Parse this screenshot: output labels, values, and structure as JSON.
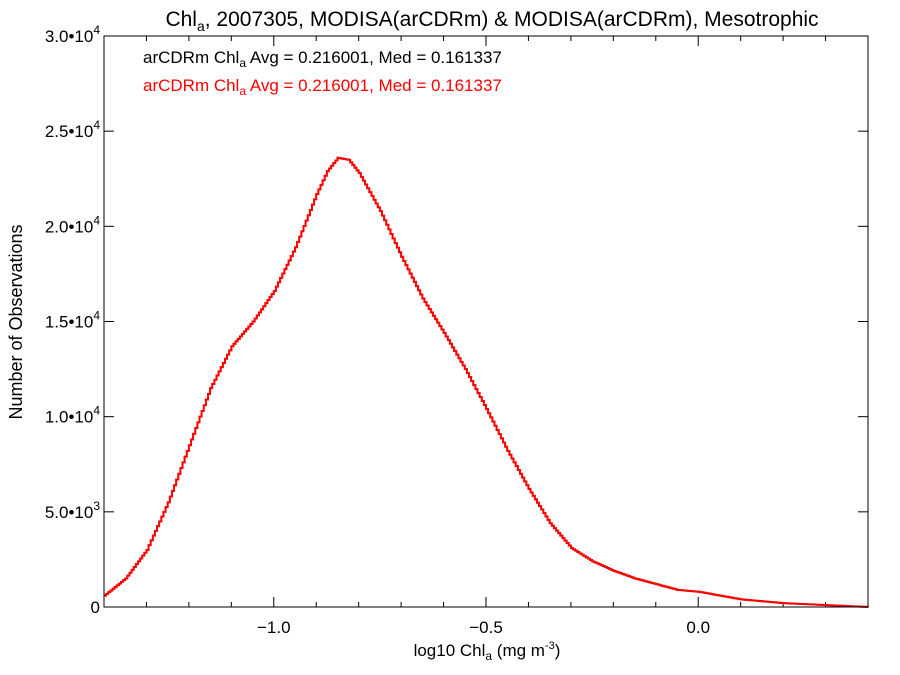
{
  "chart_data": {
    "type": "line",
    "title": {
      "pre": "Chl",
      "sub": "a",
      "post": ", 2007305, MODISA(arCDRm) & MODISA(arCDRm), Mesotrophic"
    },
    "xlabel": {
      "pre": "log10 Chl",
      "sub": "a",
      "post": " (mg m",
      "sup": "-3",
      "end": ")"
    },
    "ylabel": "Number of Observations",
    "xlim": [
      -1.4,
      0.4
    ],
    "ylim": [
      0,
      30000
    ],
    "x_ticks": [
      {
        "value": -1.0,
        "label": "−1.0"
      },
      {
        "value": -0.5,
        "label": "−0.5"
      },
      {
        "value": 0.0,
        "label": "0.0"
      }
    ],
    "y_ticks": [
      {
        "value": 0,
        "label": "0"
      },
      {
        "value": 5000,
        "mantissa": "5.0•10",
        "exp": "3"
      },
      {
        "value": 10000,
        "mantissa": "1.0•10",
        "exp": "4"
      },
      {
        "value": 15000,
        "mantissa": "1.5•10",
        "exp": "4"
      },
      {
        "value": 20000,
        "mantissa": "2.0•10",
        "exp": "4"
      },
      {
        "value": 25000,
        "mantissa": "2.5•10",
        "exp": "4"
      },
      {
        "value": 30000,
        "mantissa": "3.0•10",
        "exp": "4"
      }
    ],
    "annotations": [
      {
        "pre": "arCDRm Chl",
        "sub": "a",
        "post": " Avg = 0.216001, Med = 0.161337",
        "color": "#000000"
      },
      {
        "pre": "arCDRm Chl",
        "sub": "a",
        "post": " Avg = 0.216001, Med = 0.161337",
        "color": "#ff0000"
      }
    ],
    "series": [
      {
        "color": "#000000",
        "x": [
          -1.4,
          -1.35,
          -1.3,
          -1.25,
          -1.2,
          -1.15,
          -1.1,
          -1.05,
          -1.0,
          -0.95,
          -0.9,
          -0.875,
          -0.85,
          -0.825,
          -0.8,
          -0.775,
          -0.75,
          -0.7,
          -0.65,
          -0.6,
          -0.55,
          -0.5,
          -0.45,
          -0.4,
          -0.35,
          -0.3,
          -0.25,
          -0.2,
          -0.15,
          -0.1,
          -0.05,
          0.0,
          0.05,
          0.1,
          0.15,
          0.2,
          0.25,
          0.3,
          0.35,
          0.4
        ],
        "y": [
          600,
          1500,
          3000,
          5500,
          8500,
          11500,
          13700,
          15000,
          16600,
          18900,
          21700,
          22900,
          23600,
          23500,
          22800,
          21800,
          20800,
          18400,
          16200,
          14400,
          12500,
          10400,
          8200,
          6200,
          4400,
          3100,
          2400,
          1900,
          1500,
          1200,
          900,
          800,
          600,
          400,
          300,
          200,
          150,
          100,
          50,
          0
        ]
      },
      {
        "color": "#ff0000",
        "x": [
          -1.4,
          -1.35,
          -1.3,
          -1.25,
          -1.2,
          -1.15,
          -1.1,
          -1.05,
          -1.0,
          -0.95,
          -0.9,
          -0.875,
          -0.85,
          -0.825,
          -0.8,
          -0.775,
          -0.75,
          -0.7,
          -0.65,
          -0.6,
          -0.55,
          -0.5,
          -0.45,
          -0.4,
          -0.35,
          -0.3,
          -0.25,
          -0.2,
          -0.15,
          -0.1,
          -0.05,
          0.0,
          0.05,
          0.1,
          0.15,
          0.2,
          0.25,
          0.3,
          0.35,
          0.4
        ],
        "y": [
          600,
          1500,
          3000,
          5500,
          8500,
          11500,
          13700,
          15000,
          16600,
          18900,
          21700,
          22900,
          23600,
          23500,
          22800,
          21800,
          20800,
          18400,
          16200,
          14400,
          12500,
          10400,
          8200,
          6200,
          4400,
          3100,
          2400,
          1900,
          1500,
          1200,
          900,
          800,
          600,
          400,
          300,
          200,
          150,
          100,
          50,
          0
        ]
      }
    ]
  }
}
